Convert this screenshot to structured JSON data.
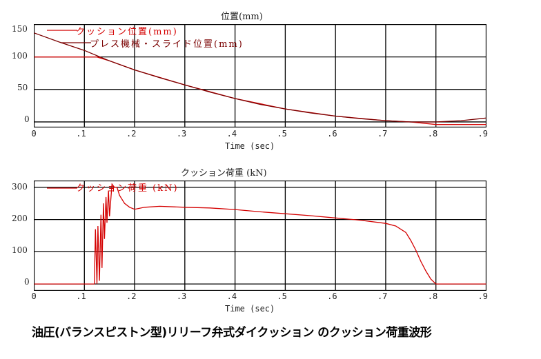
{
  "caption": "油圧(バランスピストン型)リリーフ弁式ダイクッション のクッション荷重波形",
  "colors": {
    "cushion": "#d40000",
    "slide": "#7a0000",
    "grid": "#000000"
  },
  "chart_data": [
    {
      "type": "line",
      "title": "位置(mm)",
      "xlabel": "Time (sec)",
      "ylabel": "",
      "xlim": [
        0,
        0.9
      ],
      "ylim": [
        -8,
        150
      ],
      "x_ticks": [
        "0",
        ".1",
        ".2",
        ".3",
        ".4",
        ".5",
        ".6",
        ".7",
        ".8",
        ".9"
      ],
      "y_ticks": [
        "0",
        "50",
        "100",
        "150"
      ],
      "grid": true,
      "legend_position": "upper-left",
      "series": [
        {
          "name": "クッション位置(mm)",
          "color": "#d40000",
          "x": [
            0,
            0.1,
            0.125,
            0.15,
            0.2,
            0.3,
            0.4,
            0.5,
            0.6,
            0.7,
            0.75,
            0.8,
            0.85,
            0.9
          ],
          "y": [
            100,
            100,
            100,
            94,
            80,
            57,
            36,
            20,
            9,
            2,
            0,
            -4,
            -4,
            -4
          ]
        },
        {
          "name": "プレス機械・スライド位置(mm)",
          "color": "#7a0000",
          "x": [
            0,
            0.05,
            0.1,
            0.15,
            0.2,
            0.25,
            0.3,
            0.35,
            0.4,
            0.45,
            0.5,
            0.55,
            0.6,
            0.65,
            0.7,
            0.75,
            0.8,
            0.85,
            0.9
          ],
          "y": [
            137,
            123,
            110,
            94,
            80,
            68,
            57,
            46,
            36,
            27,
            20,
            14,
            9,
            5,
            2,
            0,
            0,
            2,
            6
          ]
        }
      ]
    },
    {
      "type": "line",
      "title": "クッション荷重 (kN)",
      "xlabel": "Time (sec)",
      "ylabel": "",
      "xlim": [
        0,
        0.9
      ],
      "ylim": [
        -20,
        320
      ],
      "x_ticks": [
        "0",
        ".1",
        ".2",
        ".3",
        ".4",
        ".5",
        ".6",
        ".7",
        ".8",
        ".9"
      ],
      "y_ticks": [
        "0",
        "100",
        "200",
        "300"
      ],
      "grid": true,
      "legend_position": "upper-left",
      "series": [
        {
          "name": "クッション荷重 (kN)",
          "color": "#d40000",
          "x": [
            0,
            0.12,
            0.122,
            0.125,
            0.127,
            0.13,
            0.133,
            0.135,
            0.138,
            0.14,
            0.143,
            0.145,
            0.148,
            0.15,
            0.155,
            0.16,
            0.165,
            0.17,
            0.18,
            0.19,
            0.2,
            0.22,
            0.25,
            0.3,
            0.35,
            0.4,
            0.45,
            0.5,
            0.55,
            0.6,
            0.65,
            0.7,
            0.72,
            0.74,
            0.75,
            0.76,
            0.77,
            0.78,
            0.79,
            0.8,
            0.85,
            0.9
          ],
          "y": [
            0,
            0,
            170,
            0,
            180,
            10,
            215,
            50,
            250,
            140,
            270,
            190,
            290,
            210,
            310,
            300,
            300,
            275,
            250,
            238,
            232,
            238,
            241,
            238,
            236,
            231,
            224,
            218,
            212,
            205,
            198,
            188,
            180,
            160,
            135,
            105,
            70,
            40,
            15,
            0,
            0,
            0
          ]
        }
      ]
    }
  ],
  "chart1": {
    "title": "位置(mm)",
    "xlabel": "Time (sec)",
    "legend": [
      "クッション位置(mm)",
      "プレス機械・スライド位置(mm)"
    ],
    "y_ticks": [
      "150",
      "100",
      "50",
      "0"
    ],
    "x_ticks": [
      "0",
      ".1",
      ".2",
      ".3",
      ".4",
      ".5",
      ".6",
      ".7",
      ".8",
      ".9"
    ]
  },
  "chart2": {
    "title": "クッション荷重 (kN)",
    "xlabel": "Time (sec)",
    "legend": [
      "クッション荷重 (kN)"
    ],
    "y_ticks": [
      "300",
      "200",
      "100",
      "0"
    ],
    "x_ticks": [
      "0",
      ".1",
      ".2",
      ".3",
      ".4",
      ".5",
      ".6",
      ".7",
      ".8",
      ".9"
    ]
  }
}
